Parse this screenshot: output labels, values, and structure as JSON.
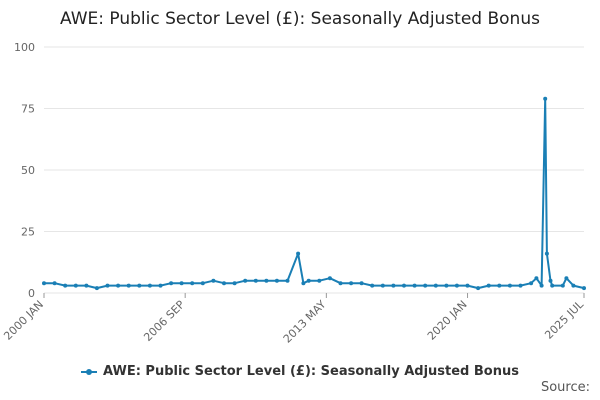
{
  "page": {
    "title": "AWE: Public Sector Level (£): Seasonally Adjusted Bonus",
    "source_label": "Source:"
  },
  "colors": {
    "series": "#1a7fb5",
    "grid": "#e6e6e6",
    "axis_text": "#666666"
  },
  "chart_data": {
    "type": "line",
    "title": "AWE: Public Sector Level (£): Seasonally Adjusted Bonus",
    "xlabel": "",
    "ylabel": "",
    "ylim": [
      0,
      100
    ],
    "yticks": [
      0,
      25,
      50,
      75,
      100
    ],
    "x_range": [
      "2000 JAN",
      "2025 JUL"
    ],
    "xticks": [
      "2000 JAN",
      "2006 SEP",
      "2013 MAY",
      "2020 JAN",
      "2025 JUL"
    ],
    "grid": true,
    "legend": "bottom-center",
    "series": [
      {
        "name": "AWE: Public Sector Level (£): Seasonally Adjusted Bonus",
        "points": [
          [
            "2000 JAN",
            4
          ],
          [
            "2000 JUL",
            4
          ],
          [
            "2001 JAN",
            3
          ],
          [
            "2001 JUL",
            3
          ],
          [
            "2002 JAN",
            3
          ],
          [
            "2002 JUL",
            2
          ],
          [
            "2003 JAN",
            3
          ],
          [
            "2003 JUL",
            3
          ],
          [
            "2004 JAN",
            3
          ],
          [
            "2004 JUL",
            3
          ],
          [
            "2005 JAN",
            3
          ],
          [
            "2005 JUL",
            3
          ],
          [
            "2006 JAN",
            4
          ],
          [
            "2006 JUL",
            4
          ],
          [
            "2007 JAN",
            4
          ],
          [
            "2007 JUL",
            4
          ],
          [
            "2008 JAN",
            5
          ],
          [
            "2008 JUL",
            4
          ],
          [
            "2009 JAN",
            4
          ],
          [
            "2009 JUL",
            5
          ],
          [
            "2010 JAN",
            5
          ],
          [
            "2010 JUL",
            5
          ],
          [
            "2011 JAN",
            5
          ],
          [
            "2011 JUL",
            5
          ],
          [
            "2012 JAN",
            16
          ],
          [
            "2012 APR",
            4
          ],
          [
            "2012 JUL",
            5
          ],
          [
            "2013 JAN",
            5
          ],
          [
            "2013 JUL",
            6
          ],
          [
            "2014 JAN",
            4
          ],
          [
            "2014 JUL",
            4
          ],
          [
            "2015 JAN",
            4
          ],
          [
            "2015 JUL",
            3
          ],
          [
            "2016 JAN",
            3
          ],
          [
            "2016 JUL",
            3
          ],
          [
            "2017 JAN",
            3
          ],
          [
            "2017 JUL",
            3
          ],
          [
            "2018 JAN",
            3
          ],
          [
            "2018 JUL",
            3
          ],
          [
            "2019 JAN",
            3
          ],
          [
            "2019 JUL",
            3
          ],
          [
            "2020 JAN",
            3
          ],
          [
            "2020 JUL",
            2
          ],
          [
            "2021 JAN",
            3
          ],
          [
            "2021 JUL",
            3
          ],
          [
            "2022 JAN",
            3
          ],
          [
            "2022 JUL",
            3
          ],
          [
            "2023 JAN",
            4
          ],
          [
            "2023 APR",
            6
          ],
          [
            "2023 JUL",
            3
          ],
          [
            "2023 SEP",
            79
          ],
          [
            "2023 OCT",
            16
          ],
          [
            "2023 DEC",
            5
          ],
          [
            "2024 JAN",
            3
          ],
          [
            "2024 JUL",
            3
          ],
          [
            "2024 SEP",
            6
          ],
          [
            "2025 JAN",
            3
          ],
          [
            "2025 JUL",
            2
          ]
        ]
      }
    ]
  }
}
